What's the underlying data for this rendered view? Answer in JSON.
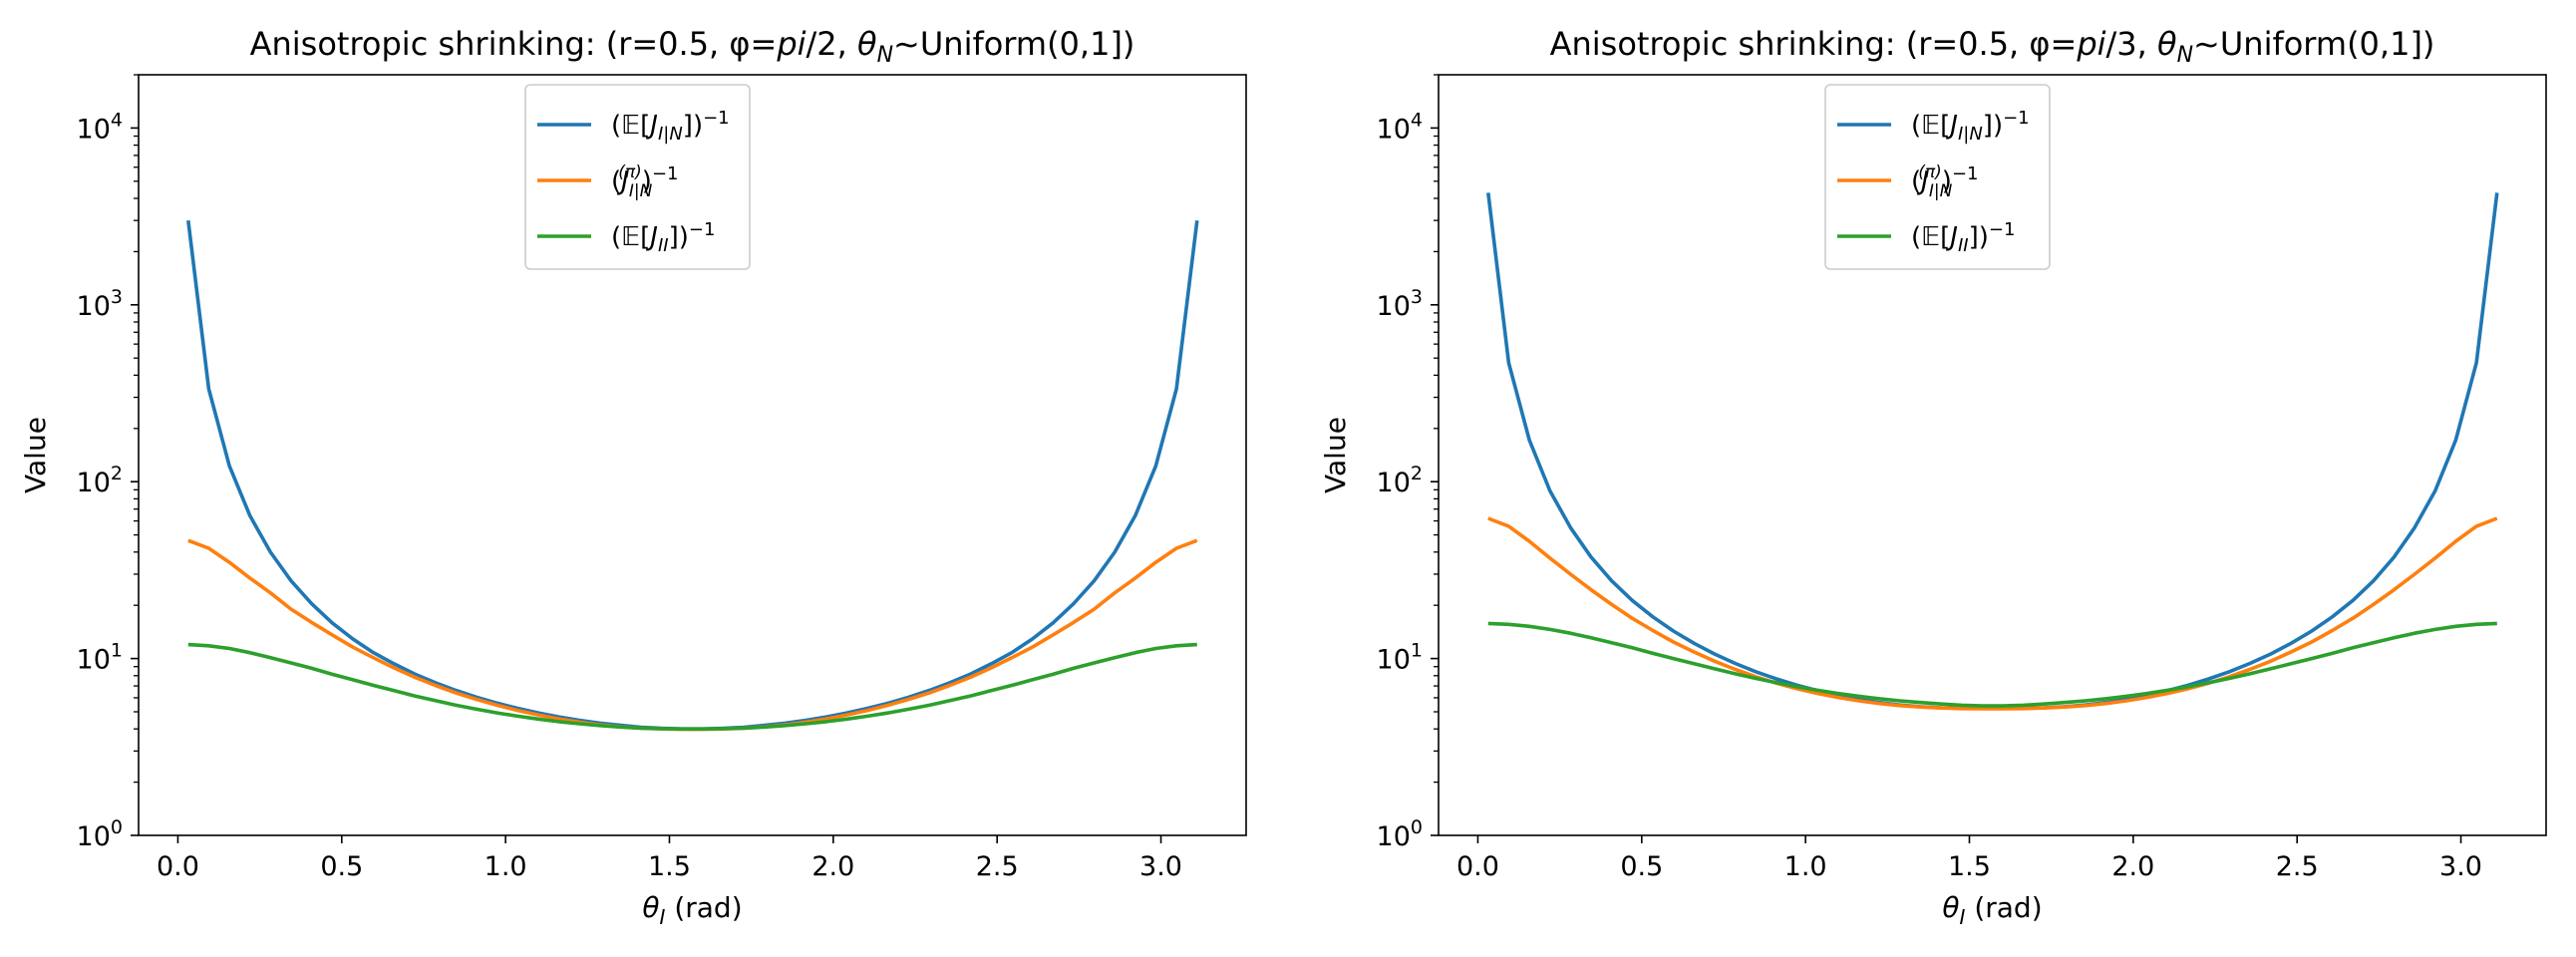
{
  "chart_data": [
    {
      "type": "line",
      "title": "Anisotropic shrinking: (r=0.5, φ=pi/2, θN~Uniform(0,1])",
      "title_parts": {
        "pre": "Anisotropic shrinking: (r=0.5, φ=",
        "phi": "pi",
        "phi_den": "/2, ",
        "theta": "θ",
        "theta_sub": "N",
        "post": "~Uniform(0,1])"
      },
      "xlabel": "θI (rad)",
      "xlabel_parts": {
        "theta": "θ",
        "sub": "I",
        "rest": " (rad)"
      },
      "ylabel": "Value",
      "yscale": "log",
      "xlim": [
        -0.12,
        3.26
      ],
      "ylim": [
        1,
        20000
      ],
      "xticks": [
        0.0,
        0.5,
        1.0,
        1.5,
        2.0,
        2.5,
        3.0
      ],
      "xtick_labels": [
        "0.0",
        "0.5",
        "1.0",
        "1.5",
        "2.0",
        "2.5",
        "3.0"
      ],
      "yticks": [
        1,
        10,
        100,
        1000,
        10000
      ],
      "ytick_labels": [
        {
          "base": "10",
          "exp": "0"
        },
        {
          "base": "10",
          "exp": "1"
        },
        {
          "base": "10",
          "exp": "2"
        },
        {
          "base": "10",
          "exp": "3"
        },
        {
          "base": "10",
          "exp": "4"
        }
      ],
      "legend_position": "upper-center",
      "x": [
        0.0314,
        0.0942,
        0.1571,
        0.2199,
        0.2827,
        0.3456,
        0.4084,
        0.4712,
        0.5341,
        0.5969,
        0.6597,
        0.7226,
        0.7854,
        0.8482,
        0.9111,
        0.9739,
        1.0367,
        1.0996,
        1.1624,
        1.2252,
        1.2881,
        1.3509,
        1.4137,
        1.4765,
        1.5394,
        1.6022,
        1.665,
        1.7279,
        1.7907,
        1.8535,
        1.9164,
        1.9792,
        2.042,
        2.1049,
        2.1677,
        2.2305,
        2.2934,
        2.3562,
        2.419,
        2.4819,
        2.5447,
        2.6075,
        2.6704,
        2.7332,
        2.796,
        2.8588,
        2.9217,
        2.9845,
        3.0473,
        3.1102
      ],
      "series": [
        {
          "name": "(E[J_I|N])^-1",
          "label_parts": {
            "open": "(",
            "E": "𝔼",
            "br_open": "[",
            "J": "J",
            "sub": "I|N",
            "br_close": "])",
            "sup": "−1"
          },
          "color": "#1f77b4",
          "values": [
            3000,
            335,
            123,
            64.2,
            39.9,
            27.5,
            20.4,
            15.9,
            12.9,
            10.8,
            9.33,
            8.18,
            7.3,
            6.61,
            6.05,
            5.6,
            5.23,
            4.93,
            4.68,
            4.48,
            4.31,
            4.19,
            4.09,
            4.03,
            4.0,
            4.0,
            4.03,
            4.09,
            4.19,
            4.31,
            4.48,
            4.68,
            4.93,
            5.23,
            5.6,
            6.05,
            6.61,
            7.3,
            8.18,
            9.33,
            10.8,
            12.9,
            15.9,
            20.4,
            27.5,
            39.9,
            64.2,
            123,
            335,
            3000
          ]
        },
        {
          "name": "(J_I|N^(π))^-1",
          "label_parts": {
            "open": "(",
            "J": "J",
            "sub": "I|N",
            "pisup": "(π)",
            "close": ")",
            "sup": "−1"
          },
          "color": "#ff7f0e",
          "values": [
            46.5,
            42.0,
            35.0,
            28.5,
            23.5,
            19.0,
            16.0,
            13.6,
            11.6,
            10.1,
            8.85,
            7.85,
            7.05,
            6.4,
            5.88,
            5.45,
            5.09,
            4.8,
            4.56,
            4.37,
            4.22,
            4.11,
            4.04,
            4.0,
            3.98,
            3.98,
            4.0,
            4.04,
            4.11,
            4.22,
            4.37,
            4.56,
            4.8,
            5.09,
            5.45,
            5.88,
            6.4,
            7.05,
            7.85,
            8.85,
            10.1,
            11.6,
            13.6,
            16.0,
            19.0,
            23.5,
            28.5,
            35.0,
            42.0,
            46.5
          ]
        },
        {
          "name": "(E[J_II])^-1",
          "label_parts": {
            "open": "(",
            "E": "𝔼",
            "br_open": "[",
            "J": "J",
            "sub": "II",
            "br_close": "])",
            "sup": "−1"
          },
          "color": "#2ca02c",
          "values": [
            12.0,
            11.8,
            11.4,
            10.8,
            10.1,
            9.45,
            8.8,
            8.15,
            7.58,
            7.05,
            6.58,
            6.15,
            5.78,
            5.45,
            5.17,
            4.93,
            4.72,
            4.55,
            4.4,
            4.28,
            4.18,
            4.1,
            4.04,
            4.01,
            4.0,
            4.0,
            4.01,
            4.04,
            4.1,
            4.18,
            4.28,
            4.4,
            4.55,
            4.72,
            4.93,
            5.17,
            5.45,
            5.78,
            6.15,
            6.58,
            7.05,
            7.58,
            8.15,
            8.8,
            9.45,
            10.1,
            10.8,
            11.4,
            11.8,
            12.0
          ]
        }
      ]
    },
    {
      "type": "line",
      "title": "Anisotropic shrinking: (r=0.5, φ=pi/3, θN~Uniform(0,1])",
      "title_parts": {
        "pre": "Anisotropic shrinking: (r=0.5, φ=",
        "phi": "pi",
        "phi_den": "/3, ",
        "theta": "θ",
        "theta_sub": "N",
        "post": "~Uniform(0,1])"
      },
      "xlabel": "θI (rad)",
      "xlabel_parts": {
        "theta": "θ",
        "sub": "I",
        "rest": " (rad)"
      },
      "ylabel": "Value",
      "yscale": "log",
      "xlim": [
        -0.12,
        3.26
      ],
      "ylim": [
        1,
        20000
      ],
      "xticks": [
        0.0,
        0.5,
        1.0,
        1.5,
        2.0,
        2.5,
        3.0
      ],
      "xtick_labels": [
        "0.0",
        "0.5",
        "1.0",
        "1.5",
        "2.0",
        "2.5",
        "3.0"
      ],
      "yticks": [
        1,
        10,
        100,
        1000,
        10000
      ],
      "ytick_labels": [
        {
          "base": "10",
          "exp": "0"
        },
        {
          "base": "10",
          "exp": "1"
        },
        {
          "base": "10",
          "exp": "2"
        },
        {
          "base": "10",
          "exp": "3"
        },
        {
          "base": "10",
          "exp": "4"
        }
      ],
      "legend_position": "upper-center",
      "x": [
        0.0314,
        0.0942,
        0.1571,
        0.2199,
        0.2827,
        0.3456,
        0.4084,
        0.4712,
        0.5341,
        0.5969,
        0.6597,
        0.7226,
        0.7854,
        0.8482,
        0.9111,
        0.9739,
        1.0367,
        1.0996,
        1.1624,
        1.2252,
        1.2881,
        1.3509,
        1.4137,
        1.4765,
        1.5394,
        1.6022,
        1.665,
        1.7279,
        1.7907,
        1.8535,
        1.9164,
        1.9792,
        2.042,
        2.1049,
        2.1677,
        2.2305,
        2.2934,
        2.3562,
        2.419,
        2.4819,
        2.5447,
        2.6075,
        2.6704,
        2.7332,
        2.796,
        2.8588,
        2.9217,
        2.9845,
        3.0473,
        3.1102
      ],
      "series": [
        {
          "name": "(E[J_I|N])^-1",
          "label_parts": {
            "open": "(",
            "E": "𝔼",
            "br_open": "[",
            "J": "J",
            "sub": "I|N",
            "br_close": "])",
            "sup": "−1"
          },
          "color": "#1f77b4",
          "values": [
            4300,
            470,
            172,
            89.0,
            55.0,
            37.5,
            27.5,
            21.3,
            17.2,
            14.3,
            12.2,
            10.6,
            9.38,
            8.43,
            7.67,
            7.06,
            6.58,
            6.19,
            5.88,
            5.64,
            5.46,
            5.34,
            5.27,
            5.23,
            5.22,
            5.22,
            5.23,
            5.27,
            5.34,
            5.46,
            5.64,
            5.88,
            6.19,
            6.58,
            7.06,
            7.67,
            8.43,
            9.38,
            10.6,
            12.2,
            14.3,
            17.2,
            21.3,
            27.5,
            37.5,
            55.0,
            89.0,
            172,
            470,
            4300
          ]
        },
        {
          "name": "(J_I|N^(π))^-1",
          "label_parts": {
            "open": "(",
            "J": "J",
            "sub": "I|N",
            "pisup": "(π)",
            "close": ")",
            "sup": "−1"
          },
          "color": "#ff7f0e",
          "values": [
            62.0,
            56.0,
            46.0,
            37.0,
            30.0,
            24.5,
            20.2,
            16.9,
            14.4,
            12.4,
            10.9,
            9.65,
            8.68,
            7.9,
            7.26,
            6.75,
            6.35,
            6.03,
            5.77,
            5.57,
            5.42,
            5.32,
            5.25,
            5.21,
            5.2,
            5.2,
            5.21,
            5.25,
            5.32,
            5.42,
            5.57,
            5.77,
            6.03,
            6.35,
            6.75,
            7.26,
            7.9,
            8.68,
            9.65,
            10.9,
            12.4,
            14.4,
            16.9,
            20.2,
            24.5,
            30.0,
            37.0,
            46.0,
            56.0,
            62.0
          ]
        },
        {
          "name": "(E[J_II])^-1",
          "label_parts": {
            "open": "(",
            "E": "𝔼",
            "br_open": "[",
            "J": "J",
            "sub": "II",
            "br_close": "])",
            "sup": "−1"
          },
          "color": "#2ca02c",
          "values": [
            15.8,
            15.6,
            15.2,
            14.6,
            13.9,
            13.1,
            12.3,
            11.5,
            10.7,
            10.0,
            9.35,
            8.75,
            8.2,
            7.72,
            7.3,
            6.93,
            6.62,
            6.35,
            6.12,
            5.93,
            5.77,
            5.64,
            5.53,
            5.45,
            5.4,
            5.4,
            5.45,
            5.53,
            5.64,
            5.77,
            5.93,
            6.12,
            6.35,
            6.62,
            6.93,
            7.3,
            7.72,
            8.2,
            8.75,
            9.35,
            10.0,
            10.7,
            11.5,
            12.3,
            13.1,
            13.9,
            14.6,
            15.2,
            15.6,
            15.8
          ]
        }
      ]
    }
  ]
}
